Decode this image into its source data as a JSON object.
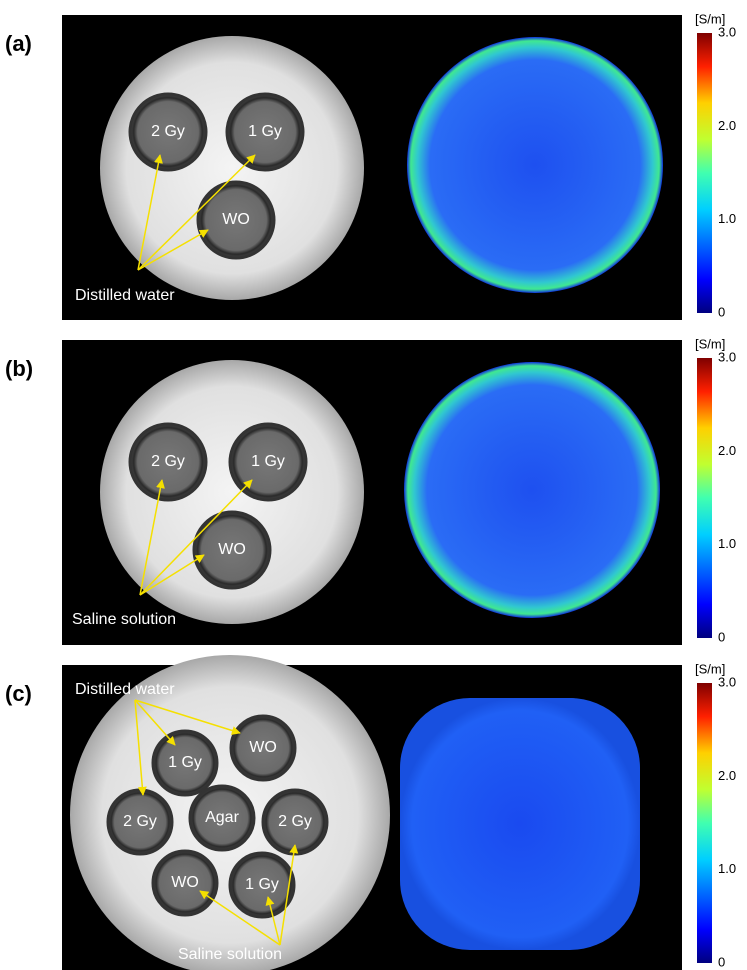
{
  "panels": [
    {
      "label": "(a)",
      "image_labels": [
        "2 Gy",
        "1 Gy",
        "WO"
      ],
      "annotations": [
        "Distilled water"
      ],
      "colorbar": {
        "unit": "[S/m]",
        "ticks": [
          "3.0",
          "2.0",
          "1.0",
          "0"
        ]
      }
    },
    {
      "label": "(b)",
      "image_labels": [
        "2 Gy",
        "1 Gy",
        "WO"
      ],
      "annotations": [
        "Saline solution"
      ],
      "colorbar": {
        "unit": "[S/m]",
        "ticks": [
          "3.0",
          "2.0",
          "1.0",
          "0"
        ]
      }
    },
    {
      "label": "(c)",
      "image_labels": [
        "1 Gy",
        "WO",
        "2 Gy",
        "Agar",
        "2 Gy",
        "WO",
        "1 Gy"
      ],
      "annotations": [
        "Distilled water",
        "Saline solution"
      ],
      "colorbar": {
        "unit": "[S/m]",
        "ticks": [
          "3.0",
          "2.0",
          "1.0",
          "0"
        ]
      }
    }
  ]
}
